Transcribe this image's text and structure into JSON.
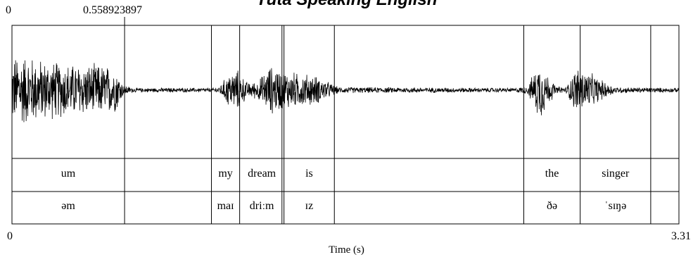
{
  "title": "Yuta Speaking English",
  "top_left_time": "0",
  "cursor_time": "0.558923897",
  "axis": {
    "start_label": "0",
    "end_label": "3.31",
    "xlabel": "Time (s)",
    "start": 0,
    "end": 3.31
  },
  "cursor": 0.558923897,
  "waveform": {
    "envelope": [
      {
        "t": 0.0,
        "a": 0.55
      },
      {
        "t": 0.05,
        "a": 0.6
      },
      {
        "t": 0.15,
        "a": 0.5
      },
      {
        "t": 0.3,
        "a": 0.43
      },
      {
        "t": 0.45,
        "a": 0.42
      },
      {
        "t": 0.52,
        "a": 0.35
      },
      {
        "t": 0.55,
        "a": 0.1
      },
      {
        "t": 0.6,
        "a": 0.035
      },
      {
        "t": 1.0,
        "a": 0.035
      },
      {
        "t": 1.03,
        "a": 0.06
      },
      {
        "t": 1.08,
        "a": 0.3
      },
      {
        "t": 1.12,
        "a": 0.33
      },
      {
        "t": 1.17,
        "a": 0.12
      },
      {
        "t": 1.22,
        "a": 0.15
      },
      {
        "t": 1.28,
        "a": 0.4
      },
      {
        "t": 1.36,
        "a": 0.32
      },
      {
        "t": 1.42,
        "a": 0.28
      },
      {
        "t": 1.5,
        "a": 0.25
      },
      {
        "t": 1.56,
        "a": 0.15
      },
      {
        "t": 1.62,
        "a": 0.05
      },
      {
        "t": 2.5,
        "a": 0.035
      },
      {
        "t": 2.56,
        "a": 0.07
      },
      {
        "t": 2.62,
        "a": 0.5
      },
      {
        "t": 2.66,
        "a": 0.25
      },
      {
        "t": 2.7,
        "a": 0.06
      },
      {
        "t": 2.75,
        "a": 0.05
      },
      {
        "t": 2.8,
        "a": 0.38
      },
      {
        "t": 2.86,
        "a": 0.3
      },
      {
        "t": 2.95,
        "a": 0.12
      },
      {
        "t": 3.0,
        "a": 0.05
      },
      {
        "t": 3.31,
        "a": 0.035
      }
    ]
  },
  "boundaries": [
    0.558923897,
    0.99,
    1.13,
    1.34,
    1.35,
    1.6,
    2.54,
    2.82,
    3.17
  ],
  "tiers": [
    {
      "name": "words",
      "intervals": [
        {
          "start": 0.0,
          "end": 0.558923897,
          "text": "um"
        },
        {
          "start": 0.558923897,
          "end": 0.99,
          "text": ""
        },
        {
          "start": 0.99,
          "end": 1.13,
          "text": "my"
        },
        {
          "start": 1.13,
          "end": 1.35,
          "text": "dream"
        },
        {
          "start": 1.35,
          "end": 1.6,
          "text": "is"
        },
        {
          "start": 1.6,
          "end": 2.54,
          "text": ""
        },
        {
          "start": 2.54,
          "end": 2.82,
          "text": "the"
        },
        {
          "start": 2.82,
          "end": 3.17,
          "text": "singer"
        },
        {
          "start": 3.17,
          "end": 3.31,
          "text": ""
        }
      ]
    },
    {
      "name": "ipa",
      "intervals": [
        {
          "start": 0.0,
          "end": 0.558923897,
          "text": "əm"
        },
        {
          "start": 0.558923897,
          "end": 0.99,
          "text": ""
        },
        {
          "start": 0.99,
          "end": 1.13,
          "text": "maɪ"
        },
        {
          "start": 1.13,
          "end": 1.35,
          "text": "driːm"
        },
        {
          "start": 1.35,
          "end": 1.6,
          "text": "ɪz"
        },
        {
          "start": 1.6,
          "end": 2.54,
          "text": ""
        },
        {
          "start": 2.54,
          "end": 2.82,
          "text": "ðə"
        },
        {
          "start": 2.82,
          "end": 3.17,
          "text": "ˈsɪŋə"
        },
        {
          "start": 3.17,
          "end": 3.31,
          "text": ""
        }
      ]
    }
  ]
}
